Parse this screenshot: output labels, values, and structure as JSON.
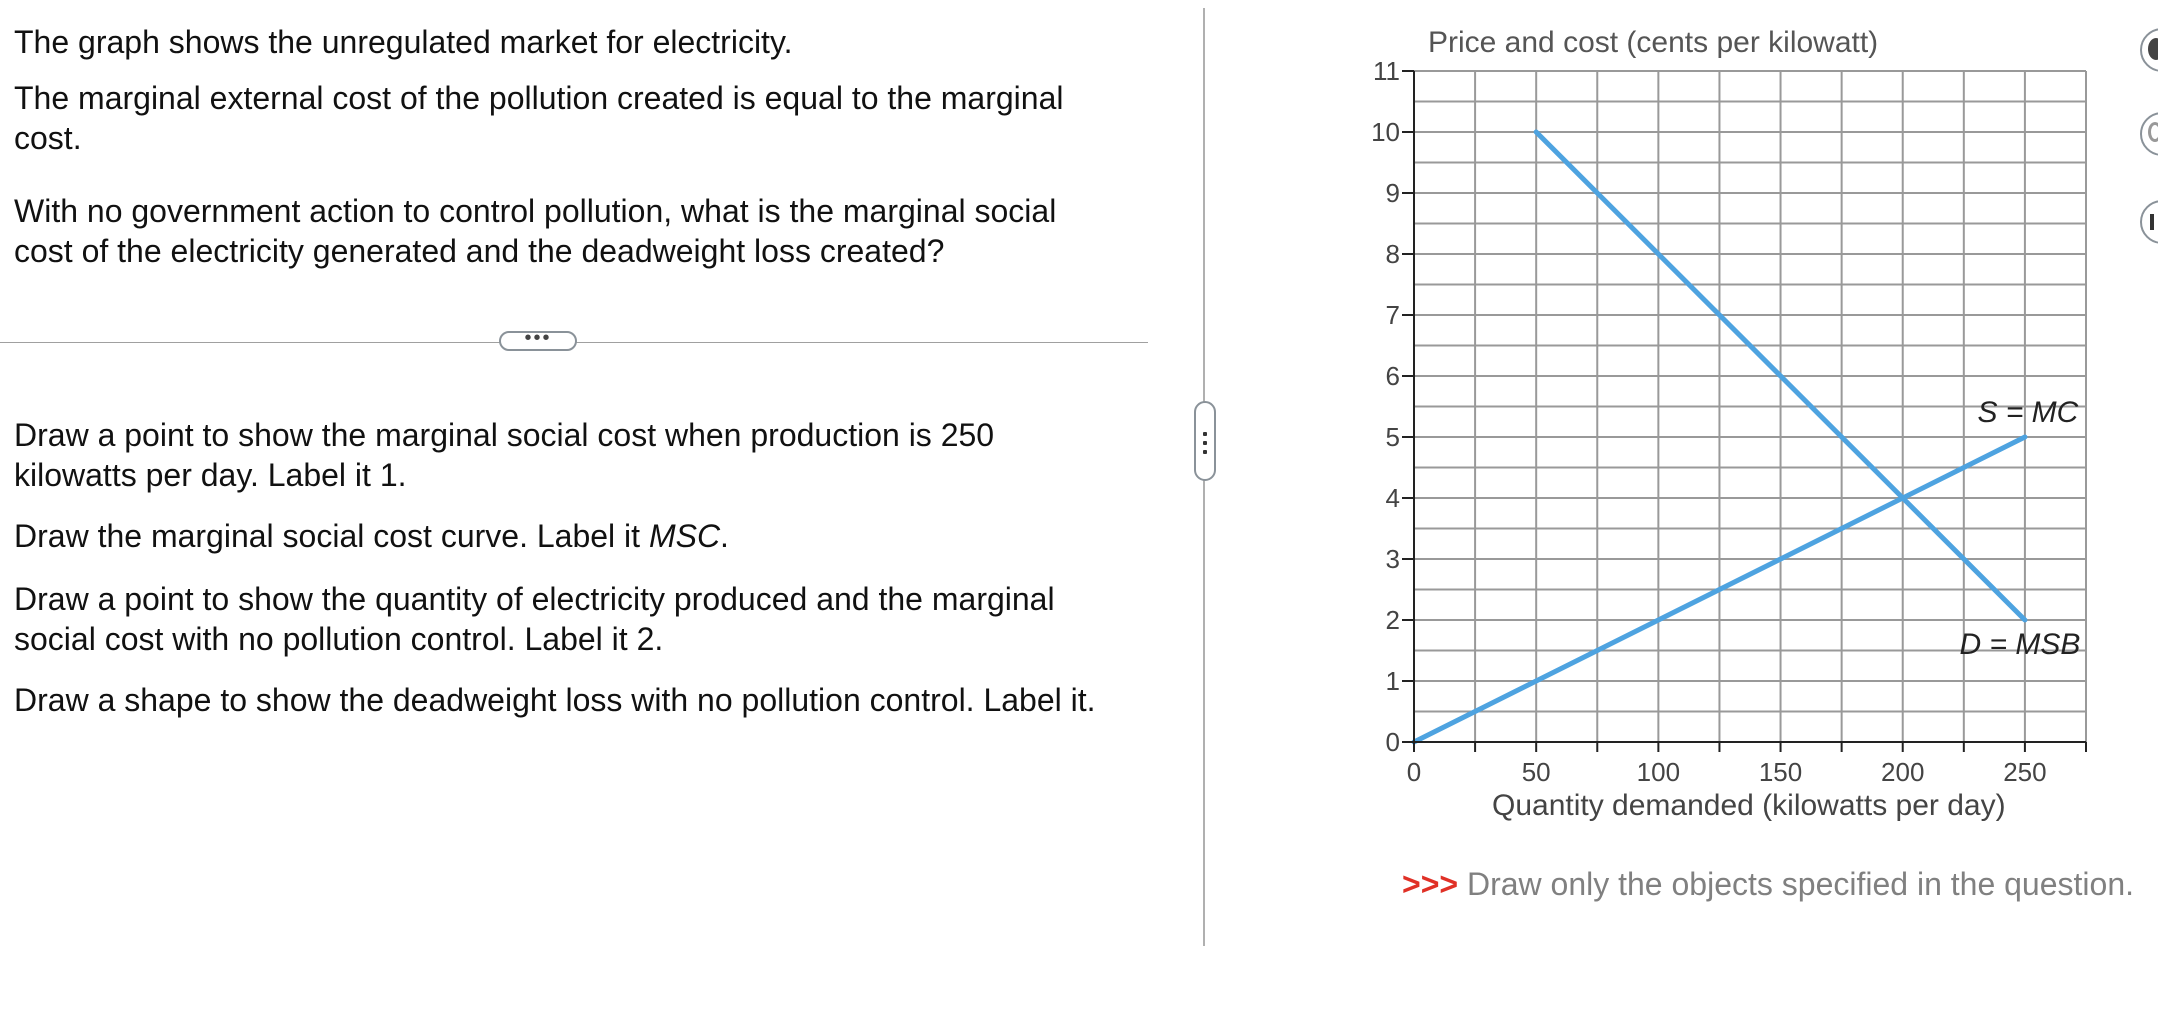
{
  "question": {
    "intro": "The graph shows the unregulated market for electricity.",
    "mec_line1": "The marginal external cost of the pollution created is equal to the marginal",
    "mec_line2": "cost.",
    "ask_line1": "With no government action to control pollution, what is the marginal social",
    "ask_line2": "cost of the electricity generated and the deadweight loss created?",
    "expand_label": "•••",
    "step1_line1": "Draw a point to show the marginal social cost when production is 250",
    "step1_line2": "kilowatts per day. Label it 1.",
    "step2_prefix": "Draw the marginal social cost curve. Label it ",
    "step2_italic": "MSC",
    "step2_suffix": ".",
    "step3_line1": "Draw a point to show the quantity of electricity produced and the marginal",
    "step3_line2": "social cost with no pollution control. Label  it 2.",
    "step4": "Draw a shape to show the deadweight loss with no pollution control. Label it."
  },
  "instruction": {
    "arrows": ">>>",
    "text": " Draw only the objects specified in the question."
  },
  "tools": [
    "point-tool-icon",
    "curve-tool-icon",
    "line-tool-icon"
  ],
  "colors": {
    "curve": "#4ea3e0",
    "grid": "#999999",
    "axis": "#222222",
    "instruction_arrows": "#e03026"
  },
  "chart_data": {
    "type": "line",
    "ylabel": "Price and cost (cents per kilowatt)",
    "xlabel": "Quantity demanded (kilowatts per day)",
    "xlim": [
      0,
      275
    ],
    "ylim": [
      0,
      11
    ],
    "x_ticks": [
      0,
      50,
      100,
      150,
      200,
      250
    ],
    "y_ticks": [
      0,
      1,
      2,
      3,
      4,
      5,
      6,
      7,
      8,
      9,
      10,
      11
    ],
    "grid": true,
    "series": [
      {
        "name": "S = MC",
        "points": [
          [
            0,
            0
          ],
          [
            250,
            5
          ]
        ]
      },
      {
        "name": "D = MSB",
        "points": [
          [
            50,
            10
          ],
          [
            250,
            2
          ]
        ]
      }
    ]
  }
}
